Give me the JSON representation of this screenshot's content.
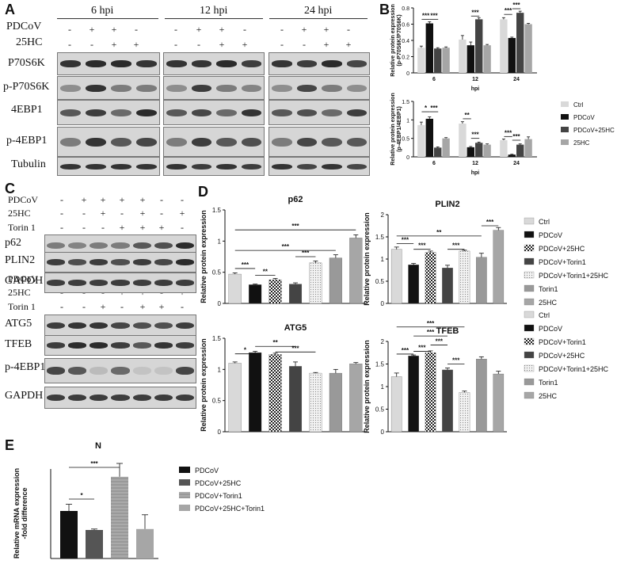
{
  "panels": {
    "A": "A",
    "B": "B",
    "C": "C",
    "D": "D",
    "E": "E"
  },
  "panel_a": {
    "timepoints": [
      "6 hpi",
      "12 hpi",
      "24 hpi"
    ],
    "row_labels": [
      "PDCoV",
      "25HC"
    ],
    "signs_pdcov": [
      "-",
      "+",
      "+",
      "-",
      "-",
      "+",
      "+",
      "-",
      "-",
      "+",
      "+",
      "-"
    ],
    "signs_25hc": [
      "-",
      "-",
      "+",
      "+",
      "-",
      "-",
      "+",
      "+",
      "-",
      "-",
      "+",
      "+"
    ],
    "blot_labels": [
      "P70S6K",
      "p-P70S6K",
      "4EBP1",
      "p-4EBP1",
      "Tubulin"
    ]
  },
  "panel_c": {
    "top_rows": [
      "PDCoV",
      "25HC",
      "Torin 1"
    ],
    "top_signs": [
      [
        "-",
        "+",
        "+",
        "+",
        "+",
        "-",
        "-"
      ],
      [
        "-",
        "-",
        "+",
        "-",
        "+",
        "-",
        "+"
      ],
      [
        "-",
        "-",
        "-",
        "+",
        "+",
        "+",
        "-"
      ]
    ],
    "top_blots": [
      "p62",
      "PLIN2",
      "GAPDH"
    ],
    "bottom_rows": [
      "PDCoV",
      "25HC",
      "Torin 1"
    ],
    "bottom_signs": [
      [
        "-",
        "+",
        "+",
        "+",
        "+",
        "-",
        "-"
      ],
      [
        "-",
        "-",
        "-",
        "+",
        "+",
        "-",
        "+"
      ],
      [
        "-",
        "-",
        "+",
        "-",
        "+",
        "+",
        "-"
      ]
    ],
    "bottom_blots": [
      "ATG5",
      "TFEB",
      "p-4EBP1",
      "GAPDH"
    ]
  },
  "chart_data": [
    {
      "id": "B1",
      "type": "bar",
      "categories": [
        "6",
        "12",
        "24"
      ],
      "xlabel": "hpi",
      "ylabel": "Relative protein expression\n(p-P70S6K/P70S6K)",
      "ylim": [
        0,
        0.8
      ],
      "yticks": [
        0,
        0.2,
        0.4,
        0.6,
        0.8
      ],
      "series": [
        {
          "name": "Ctrl",
          "color": "#d9d9d9",
          "values": [
            0.31,
            0.41,
            0.66
          ]
        },
        {
          "name": "PDCoV",
          "color": "#111111",
          "values": [
            0.61,
            0.34,
            0.43
          ]
        },
        {
          "name": "PDCoV+25HC",
          "color": "#444444",
          "values": [
            0.3,
            0.66,
            0.74
          ]
        },
        {
          "name": "25HC",
          "color": "#a6a6a6",
          "values": [
            0.31,
            0.34,
            0.6
          ]
        }
      ],
      "errors": [
        [
          0.02,
          0.05,
          0.02
        ],
        [
          0.02,
          0.04,
          0.01
        ],
        [
          0.01,
          0.02,
          0.02
        ],
        [
          0.01,
          0.01,
          0.01
        ]
      ],
      "annotations": [
        "***",
        "***",
        "***",
        "***",
        "***"
      ]
    },
    {
      "id": "B2",
      "type": "bar",
      "categories": [
        "6",
        "12",
        "24"
      ],
      "xlabel": "hpi",
      "ylabel": "Relative protein expression\n(p-4EBP1/4EBP1)",
      "ylim": [
        0,
        1.5
      ],
      "yticks": [
        0,
        0.5,
        1,
        1.5
      ],
      "series": [
        {
          "name": "Ctrl",
          "color": "#d9d9d9",
          "values": [
            0.86,
            0.9,
            0.45
          ]
        },
        {
          "name": "PDCoV",
          "color": "#111111",
          "values": [
            1.03,
            0.26,
            0.06
          ]
        },
        {
          "name": "PDCoV+25HC",
          "color": "#444444",
          "values": [
            0.25,
            0.38,
            0.33
          ]
        },
        {
          "name": "25HC",
          "color": "#a6a6a6",
          "values": [
            0.5,
            0.33,
            0.48
          ]
        }
      ],
      "errors": [
        [
          0.08,
          0.05,
          0.03
        ],
        [
          0.05,
          0.02,
          0.01
        ],
        [
          0.02,
          0.02,
          0.02
        ],
        [
          0.02,
          0.02,
          0.06
        ]
      ],
      "annotations": [
        "*",
        "***",
        "**",
        "***",
        "***",
        "***"
      ]
    },
    {
      "id": "D_p62",
      "type": "bar",
      "title": "p62",
      "categories": [
        "Ctrl",
        "PDCoV",
        "PDCoV+25HC",
        "PDCoV+Torin1",
        "PDCoV+Torin1+25HC",
        "Torin1",
        "25HC"
      ],
      "values": [
        0.47,
        0.3,
        0.38,
        0.31,
        0.65,
        0.73,
        1.05
      ],
      "errors": [
        0.02,
        0.01,
        0.02,
        0.02,
        0.03,
        0.05,
        0.05
      ],
      "ylabel": "Relative protein expression",
      "ylim": [
        0,
        1.5
      ],
      "yticks": [
        0,
        0.5,
        1,
        1.5
      ],
      "annotations": [
        "***",
        "**",
        "***",
        "***",
        "***",
        "***"
      ]
    },
    {
      "id": "D_plin2",
      "type": "bar",
      "title": "PLIN2",
      "categories": [
        "Ctrl",
        "PDCoV",
        "PDCoV+25HC",
        "PDCoV+Torin1",
        "PDCoV+Torin1+25HC",
        "Torin1",
        "25HC"
      ],
      "values": [
        1.22,
        0.87,
        1.15,
        0.8,
        1.18,
        1.04,
        1.65
      ],
      "errors": [
        0.05,
        0.03,
        0.03,
        0.06,
        0.02,
        0.09,
        0.06
      ],
      "ylabel": "Relative protein expression",
      "ylim": [
        0,
        2
      ],
      "yticks": [
        0,
        0.5,
        1,
        1.5,
        2
      ],
      "annotations": [
        "***",
        "***",
        "***",
        "**",
        "***"
      ]
    },
    {
      "id": "D_atg5",
      "type": "bar",
      "title": "ATG5",
      "categories": [
        "Ctrl",
        "PDCoV",
        "PDCoV+Torin1",
        "PDCoV+25HC",
        "PDCoV+Torin1+25HC",
        "Torin1",
        "25HC"
      ],
      "values": [
        1.1,
        1.27,
        1.24,
        1.05,
        0.94,
        0.94,
        1.09
      ],
      "errors": [
        0.02,
        0.02,
        0.02,
        0.07,
        0.01,
        0.06,
        0.02
      ],
      "ylabel": "Relative protein expression",
      "ylim": [
        0,
        1.5
      ],
      "yticks": [
        0,
        0.5,
        1,
        1.5
      ],
      "annotations": [
        "*",
        "**",
        "***"
      ]
    },
    {
      "id": "D_tfeb",
      "type": "bar",
      "title": "TFEB",
      "categories": [
        "Ctrl",
        "PDCoV",
        "PDCoV+Torin1",
        "PDCoV+25HC",
        "PDCoV+Torin1+25HC",
        "Torin1",
        "25HC"
      ],
      "values": [
        1.22,
        1.68,
        1.75,
        1.37,
        0.87,
        1.61,
        1.28
      ],
      "errors": [
        0.08,
        0.02,
        0.04,
        0.04,
        0.03,
        0.05,
        0.06
      ],
      "ylabel": "Relative protein expression",
      "ylim": [
        0,
        2
      ],
      "yticks": [
        0,
        0.5,
        1,
        1.5,
        2
      ],
      "annotations": [
        "***",
        "***",
        "***",
        "***",
        "***",
        "***"
      ]
    },
    {
      "id": "E",
      "type": "bar",
      "title": "N",
      "categories": [
        "PDCoV",
        "PDCoV+25HC",
        "PDCoV+Torin1",
        "PDCoV+25HC+Torin1"
      ],
      "values": [
        1.0,
        0.6,
        1.72,
        0.62
      ],
      "errors": [
        0.14,
        0.02,
        0.28,
        0.3
      ],
      "ylabel": "Relative mRNA expression\n-fold difference",
      "annotations": [
        "*",
        "***"
      ]
    }
  ],
  "legend_b": [
    "Ctrl",
    "PDCoV",
    "PDCoV+25HC",
    "25HC"
  ],
  "legend_d1": [
    "Ctrl",
    "PDCoV",
    "PDCoV+25HC",
    "PDCoV+Torin1",
    "PDCoV+Torin1+25HC",
    "Torin1",
    "25HC"
  ],
  "legend_d2": [
    "Ctrl",
    "PDCoV",
    "PDCoV+Torin1",
    "PDCoV+25HC",
    "PDCoV+Torin1+25HC",
    "Torin1",
    "25HC"
  ],
  "legend_e": [
    "PDCoV",
    "PDCoV+25HC",
    "PDCoV+Torin1",
    "PDCoV+25HC+Torin1"
  ]
}
